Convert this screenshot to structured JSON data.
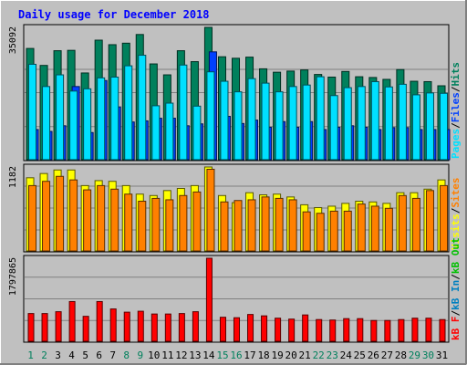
{
  "chart_data": {
    "type": "bar",
    "title": "Daily usage for December 2018",
    "colors": {
      "background": "#c0c0c0",
      "frame": "#c0c0c0",
      "title": "#0000ff",
      "hits": "#00805c",
      "files": "#0040ff",
      "pages": "#00e0ff",
      "visits": "#ffff00",
      "sites": "#ff8000",
      "kbin": "#0080c0",
      "kbout": "#00c000",
      "kbf": "#ff0000",
      "weekday_label": "#000000",
      "weekend_label": "#00805c",
      "separator": "#000000"
    },
    "days": [
      "1",
      "2",
      "3",
      "4",
      "5",
      "6",
      "7",
      "8",
      "9",
      "10",
      "11",
      "12",
      "13",
      "14",
      "15",
      "16",
      "17",
      "18",
      "19",
      "20",
      "21",
      "22",
      "23",
      "24",
      "25",
      "26",
      "27",
      "28",
      "29",
      "30",
      "31"
    ],
    "weekend": [
      true,
      true,
      false,
      false,
      false,
      false,
      false,
      true,
      true,
      false,
      false,
      false,
      false,
      false,
      true,
      true,
      false,
      false,
      false,
      false,
      false,
      true,
      true,
      false,
      false,
      false,
      false,
      false,
      true,
      true,
      false
    ],
    "panels": [
      {
        "id": "usage",
        "max_label": "35092",
        "ylim": [
          0,
          35092
        ],
        "series": [
          {
            "key": "hits",
            "values": [
              29500,
              25000,
              28900,
              29000,
              23000,
              31700,
              30500,
              30900,
              33200,
              25400,
              22500,
              28900,
              26000,
              35092,
              27300,
              26900,
              27200,
              24100,
              23200,
              23500,
              23800,
              22600,
              21900,
              23400,
              22000,
              21800,
              21300,
              23900,
              20800,
              20700,
              19600
            ]
          },
          {
            "key": "files",
            "values": [
              8000,
              7500,
              9000,
              19400,
              7200,
              21000,
              14000,
              10000,
              10300,
              11000,
              11000,
              9000,
              9500,
              28600,
              11500,
              9600,
              10500,
              8600,
              10100,
              8600,
              10100,
              8000,
              8600,
              9000,
              8600,
              8000,
              8500,
              8500,
              8000,
              8000,
              8000
            ]
          },
          {
            "key": "pages",
            "values": [
              25300,
              19400,
              22500,
              18200,
              18800,
              21700,
              21900,
              24900,
              27700,
              14300,
              15000,
              25100,
              14200,
              23300,
              20800,
              18000,
              21500,
              20300,
              18000,
              19400,
              19800,
              22000,
              17000,
              19100,
              19400,
              20700,
              19300,
              20000,
              17200,
              17700,
              17600
            ]
          }
        ],
        "legend": [
          {
            "key": "pages",
            "label": "Pages"
          },
          {
            "key": "sep",
            "label": "/"
          },
          {
            "key": "files",
            "label": "Files"
          },
          {
            "key": "sep",
            "label": "/"
          },
          {
            "key": "hits",
            "label": "Hits"
          }
        ]
      },
      {
        "id": "visits",
        "max_label": "1182",
        "ylim": [
          0,
          1182
        ],
        "series": [
          {
            "key": "visits",
            "values": [
              1030,
              1090,
              1140,
              1140,
              920,
              990,
              980,
              920,
              800,
              780,
              850,
              880,
              920,
              1182,
              780,
              680,
              820,
              790,
              800,
              760,
              650,
              610,
              630,
              670,
              700,
              690,
              670,
              820,
              820,
              870,
              1000
            ]
          },
          {
            "key": "sites",
            "values": [
              920,
              980,
              1050,
              1000,
              860,
              920,
              870,
              800,
              700,
              740,
              720,
              780,
              830,
              1150,
              690,
              710,
              720,
              760,
              740,
              720,
              550,
              530,
              560,
              560,
              660,
              630,
              600,
              780,
              740,
              850,
              920
            ]
          }
        ],
        "legend": [
          {
            "key": "visits",
            "label": "Visits"
          },
          {
            "key": "sep",
            "label": "/"
          },
          {
            "key": "sites",
            "label": "Sites"
          }
        ]
      },
      {
        "id": "kbytes",
        "max_label": "1797865",
        "ylim": [
          0,
          1797865
        ],
        "series": [
          {
            "key": "kbf",
            "values": [
              600000,
              600000,
              640000,
              860000,
              540000,
              860000,
              700000,
              630000,
              650000,
              590000,
              590000,
              600000,
              640000,
              1797865,
              520000,
              510000,
              580000,
              550000,
              500000,
              480000,
              570000,
              470000,
              460000,
              490000,
              490000,
              450000,
              450000,
              470000,
              500000,
              500000,
              470000
            ]
          }
        ],
        "legend": [
          {
            "key": "kbf",
            "label": "kB F"
          },
          {
            "key": "sep",
            "label": "/"
          },
          {
            "key": "kbin",
            "label": "kB In"
          },
          {
            "key": "sep",
            "label": "/"
          },
          {
            "key": "kbout",
            "label": "kB Out"
          }
        ]
      }
    ]
  }
}
